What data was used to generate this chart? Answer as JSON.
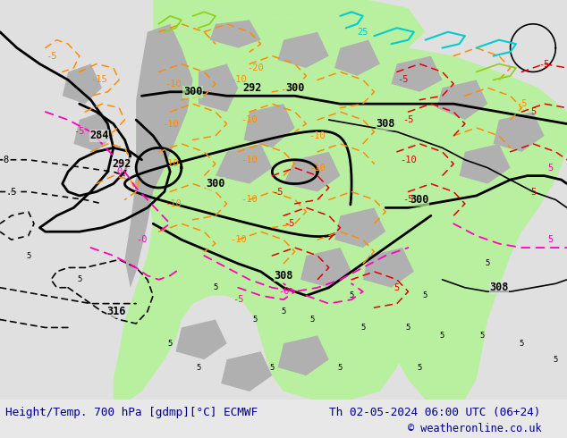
{
  "title_left": "Height/Temp. 700 hPa [gdmp][°C] ECMWF",
  "title_right": "Th 02-05-2024 06:00 UTC (06+24)",
  "copyright": "© weatheronline.co.uk",
  "bg_color": "#e8e8e8",
  "map_bg_color": "#e0e0e0",
  "bottom_bar_color": "#dcdcdc",
  "text_color": "#00008b",
  "fig_width": 6.34,
  "fig_height": 4.9,
  "dpi": 100,
  "bottom_bar_height": 0.088,
  "title_fontsize": 9.2,
  "copyright_fontsize": 8.5,
  "green_color": "#b8f0a0",
  "gray_terrain_color": "#b0b0b0",
  "orange": "#ff8c00",
  "red": "#e00000",
  "pink": "#ff00bb",
  "cyan": "#00cccc",
  "lime_green": "#90d020",
  "black": "#000000"
}
